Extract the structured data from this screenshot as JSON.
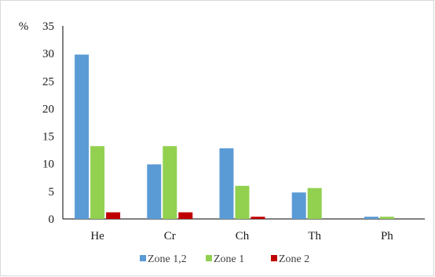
{
  "chart_data": {
    "type": "bar",
    "title": "",
    "xlabel": "",
    "ylabel": "%",
    "ylim": [
      0,
      35
    ],
    "yticks": [
      0,
      5,
      10,
      15,
      20,
      25,
      30,
      35
    ],
    "grid": false,
    "legend_position": "bottom",
    "categories": [
      "He",
      "Cr",
      "Ch",
      "Th",
      "Ph"
    ],
    "series": [
      {
        "name": "Zone 1,2",
        "color": "#5b9bd5",
        "values": [
          29.8,
          9.9,
          12.8,
          4.8,
          0.4
        ]
      },
      {
        "name": "Zone 1",
        "color": "#92d050",
        "values": [
          13.2,
          13.2,
          6.0,
          5.6,
          0.4
        ]
      },
      {
        "name": "Zone 2",
        "color": "#c00000",
        "values": [
          1.2,
          1.2,
          0.4,
          0,
          0
        ]
      }
    ]
  }
}
